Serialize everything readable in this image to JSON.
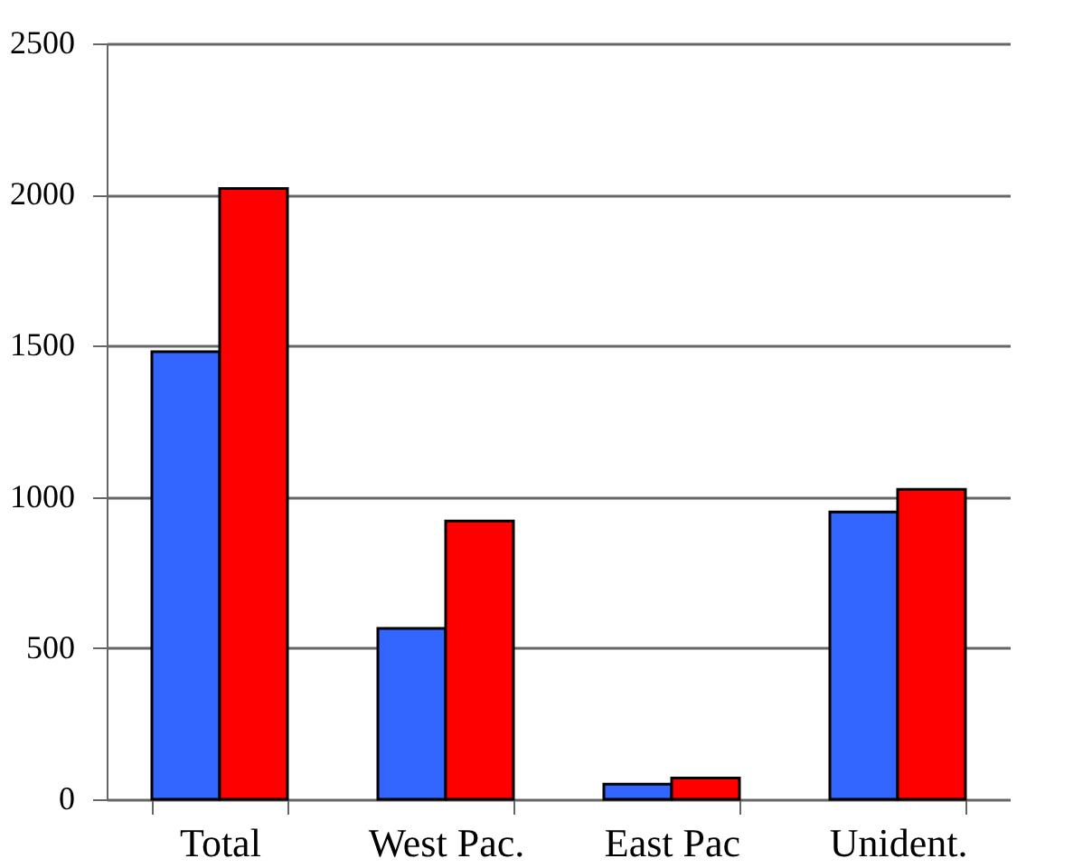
{
  "chart_data": {
    "type": "bar",
    "categories": [
      "Total",
      "West Pac.",
      "East Pac",
      "Unident."
    ],
    "series": [
      {
        "color": "#3366ff",
        "values": [
          1480,
          565,
          50,
          950
        ]
      },
      {
        "color": "#ff0000",
        "values": [
          2020,
          920,
          70,
          1025
        ]
      }
    ],
    "ylim": [
      0,
      2500
    ],
    "yticks": [
      0,
      500,
      1000,
      1500,
      2000,
      2500
    ],
    "grid": "y",
    "legend": false
  }
}
